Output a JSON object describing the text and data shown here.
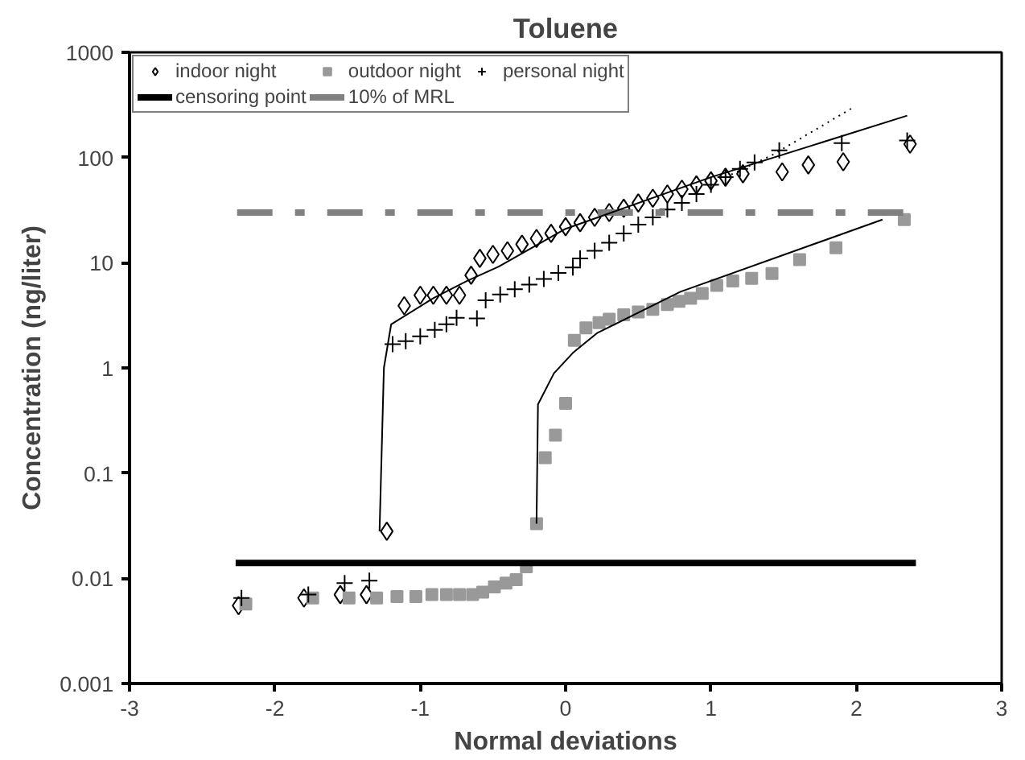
{
  "chart_data": {
    "type": "scatter",
    "title": "Toluene",
    "xlabel": "Normal deviations",
    "ylabel": "Concentration (ng/liter)",
    "xlim": [
      -3,
      3
    ],
    "xticks": [
      -3,
      -2,
      -1,
      0,
      1,
      2,
      3
    ],
    "ylim": [
      0.001,
      1000
    ],
    "yticks": [
      0.001,
      0.01,
      0.1,
      1,
      10,
      100,
      1000
    ],
    "log": "y",
    "grid": false,
    "legend": "top",
    "series": [
      {
        "name": "indoor night",
        "marker": "diamond",
        "color": "#000000",
        "x": [
          -2.25,
          -1.8,
          -1.55,
          -1.37,
          -1.23,
          -1.11,
          -1.0,
          -0.91,
          -0.82,
          -0.73,
          -0.65,
          -0.59,
          -0.5,
          -0.4,
          -0.3,
          -0.2,
          -0.1,
          0,
          0.1,
          0.2,
          0.3,
          0.4,
          0.5,
          0.6,
          0.7,
          0.8,
          0.9,
          1.0,
          1.1,
          1.22,
          1.49,
          1.67,
          1.91,
          2.37
        ],
        "values": [
          0.0055,
          0.0065,
          0.007,
          0.007,
          0.028,
          3.9,
          4.9,
          4.9,
          4.9,
          4.9,
          7.6,
          11,
          12,
          13,
          15,
          17,
          19,
          22,
          24,
          27,
          30,
          33,
          37,
          41,
          45,
          50,
          55,
          60,
          65,
          70,
          73,
          85,
          91,
          134
        ]
      },
      {
        "name": "outdoor night",
        "marker": "square",
        "color": "#999999",
        "x": [
          -2.2,
          -1.74,
          -1.49,
          -1.3,
          -1.16,
          -1.03,
          -0.92,
          -0.82,
          -0.73,
          -0.64,
          -0.57,
          -0.49,
          -0.41,
          -0.34,
          -0.27,
          -0.2,
          -0.14,
          -0.07,
          0.0,
          0.06,
          0.14,
          0.23,
          0.3,
          0.4,
          0.5,
          0.6,
          0.7,
          0.78,
          0.86,
          0.94,
          1.04,
          1.15,
          1.28,
          1.42,
          1.61,
          1.86,
          2.33
        ],
        "values": [
          0.0057,
          0.0065,
          0.0065,
          0.0065,
          0.0067,
          0.0067,
          0.007,
          0.007,
          0.007,
          0.007,
          0.0074,
          0.0083,
          0.009,
          0.0097,
          0.0129,
          0.033,
          0.14,
          0.23,
          0.46,
          1.83,
          2.4,
          2.7,
          2.9,
          3.2,
          3.4,
          3.6,
          4.0,
          4.3,
          4.6,
          5.1,
          6.1,
          6.7,
          7.1,
          7.9,
          10.7,
          13.9,
          25.7
        ]
      },
      {
        "name": "personal night",
        "marker": "cross",
        "color": "#000000",
        "x": [
          -2.23,
          -1.77,
          -1.52,
          -1.35,
          -1.19,
          -1.1,
          -1.0,
          -0.9,
          -0.82,
          -0.75,
          -0.61,
          -0.55,
          -0.45,
          -0.35,
          -0.25,
          -0.15,
          -0.05,
          0.05,
          0.1,
          0.2,
          0.3,
          0.4,
          0.5,
          0.6,
          0.7,
          0.8,
          0.9,
          1.0,
          1.1,
          1.2,
          1.3,
          1.47,
          1.9,
          2.35
        ],
        "values": [
          0.0065,
          0.007,
          0.009,
          0.0095,
          1.68,
          1.8,
          2.0,
          2.3,
          2.6,
          3.0,
          2.95,
          4.4,
          5.0,
          5.6,
          6.2,
          7,
          8,
          9,
          11,
          13,
          15.5,
          19,
          23,
          27,
          32,
          37,
          45,
          55,
          65,
          78,
          90,
          117,
          137,
          145
        ]
      },
      {
        "name": "censoring point",
        "type": "line",
        "line_style": "solid",
        "color": "#000000",
        "x": [
          -2.27,
          2.41
        ],
        "values": [
          0.014,
          0.014
        ]
      },
      {
        "name": "10% of MRL",
        "type": "line",
        "line_style": "dashdot",
        "color": "#808080",
        "x": [
          -2.26,
          2.39
        ],
        "values": [
          30,
          30
        ]
      },
      {
        "type": "line",
        "line_style": "solid",
        "color": "#000000",
        "x": [
          -1.28,
          -1.25,
          -1.2,
          -0.91,
          -0.68,
          -0.46,
          0,
          1.0,
          2.35
        ],
        "values": [
          0.028,
          1.0,
          2.6,
          4.6,
          6.7,
          9.2,
          21,
          65,
          250
        ]
      },
      {
        "type": "line",
        "line_style": "dotted",
        "color": "#000000",
        "x": [
          1.1,
          1.43,
          1.98
        ],
        "values": [
          65,
          107,
          300
        ]
      },
      {
        "type": "line",
        "line_style": "solid",
        "color": "#000000",
        "x": [
          -0.2,
          -0.19,
          -0.08,
          0.05,
          0.22,
          0.79,
          2.18
        ],
        "values": [
          0.033,
          0.45,
          0.89,
          1.39,
          2.16,
          5.3,
          25.7
        ]
      }
    ]
  }
}
